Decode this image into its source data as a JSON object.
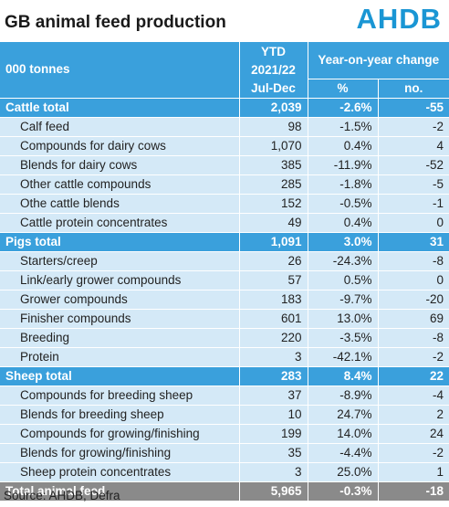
{
  "title": "GB animal feed production",
  "logo_text": "AHDB",
  "header": {
    "unit_label": "000 tonnes",
    "ytd_line1": "YTD",
    "ytd_line2": "2021/22",
    "ytd_line3": "Jul-Dec",
    "yoy_label": "Year-on-year change",
    "pct_label": "%",
    "no_label": "no."
  },
  "rows": [
    {
      "type": "group",
      "label": "Cattle total",
      "ytd": "2,039",
      "pct": "-2.6%",
      "no": "-55"
    },
    {
      "type": "item",
      "label": "Calf feed",
      "ytd": "98",
      "pct": "-1.5%",
      "no": "-2"
    },
    {
      "type": "item",
      "label": "Compounds for dairy cows",
      "ytd": "1,070",
      "pct": "0.4%",
      "no": "4"
    },
    {
      "type": "item",
      "label": "Blends for dairy cows",
      "ytd": "385",
      "pct": "-11.9%",
      "no": "-52"
    },
    {
      "type": "item",
      "label": "Other cattle compounds",
      "ytd": "285",
      "pct": "-1.8%",
      "no": "-5"
    },
    {
      "type": "item",
      "label": "Othe cattle blends",
      "ytd": "152",
      "pct": "-0.5%",
      "no": "-1"
    },
    {
      "type": "item",
      "label": "Cattle protein concentrates",
      "ytd": "49",
      "pct": "0.4%",
      "no": "0"
    },
    {
      "type": "group",
      "label": "Pigs total",
      "ytd": "1,091",
      "pct": "3.0%",
      "no": "31"
    },
    {
      "type": "item",
      "label": "Starters/creep",
      "ytd": "26",
      "pct": "-24.3%",
      "no": "-8"
    },
    {
      "type": "item",
      "label": "Link/early grower compounds",
      "ytd": "57",
      "pct": "0.5%",
      "no": "0"
    },
    {
      "type": "item",
      "label": "Grower compounds",
      "ytd": "183",
      "pct": "-9.7%",
      "no": "-20"
    },
    {
      "type": "item",
      "label": "Finisher compounds",
      "ytd": "601",
      "pct": "13.0%",
      "no": "69"
    },
    {
      "type": "item",
      "label": "Breeding",
      "ytd": "220",
      "pct": "-3.5%",
      "no": "-8"
    },
    {
      "type": "item",
      "label": "Protein",
      "ytd": "3",
      "pct": "-42.1%",
      "no": "-2"
    },
    {
      "type": "group",
      "label": "Sheep total",
      "ytd": "283",
      "pct": "8.4%",
      "no": "22"
    },
    {
      "type": "item",
      "label": "Compounds for breeding sheep",
      "ytd": "37",
      "pct": "-8.9%",
      "no": "-4"
    },
    {
      "type": "item",
      "label": "Blends for breeding sheep",
      "ytd": "10",
      "pct": "24.7%",
      "no": "2"
    },
    {
      "type": "item",
      "label": "Compounds for growing/finishing",
      "ytd": "199",
      "pct": "14.0%",
      "no": "24"
    },
    {
      "type": "item",
      "label": "Blends for growing/finishing",
      "ytd": "35",
      "pct": "-4.4%",
      "no": "-2"
    },
    {
      "type": "item",
      "label": "Sheep protein concentrates",
      "ytd": "3",
      "pct": "25.0%",
      "no": "1"
    },
    {
      "type": "total",
      "label": "Total animal feed",
      "ytd": "5,965",
      "pct": "-0.3%",
      "no": "-18"
    }
  ],
  "source": "Source: AHDB, Defra"
}
